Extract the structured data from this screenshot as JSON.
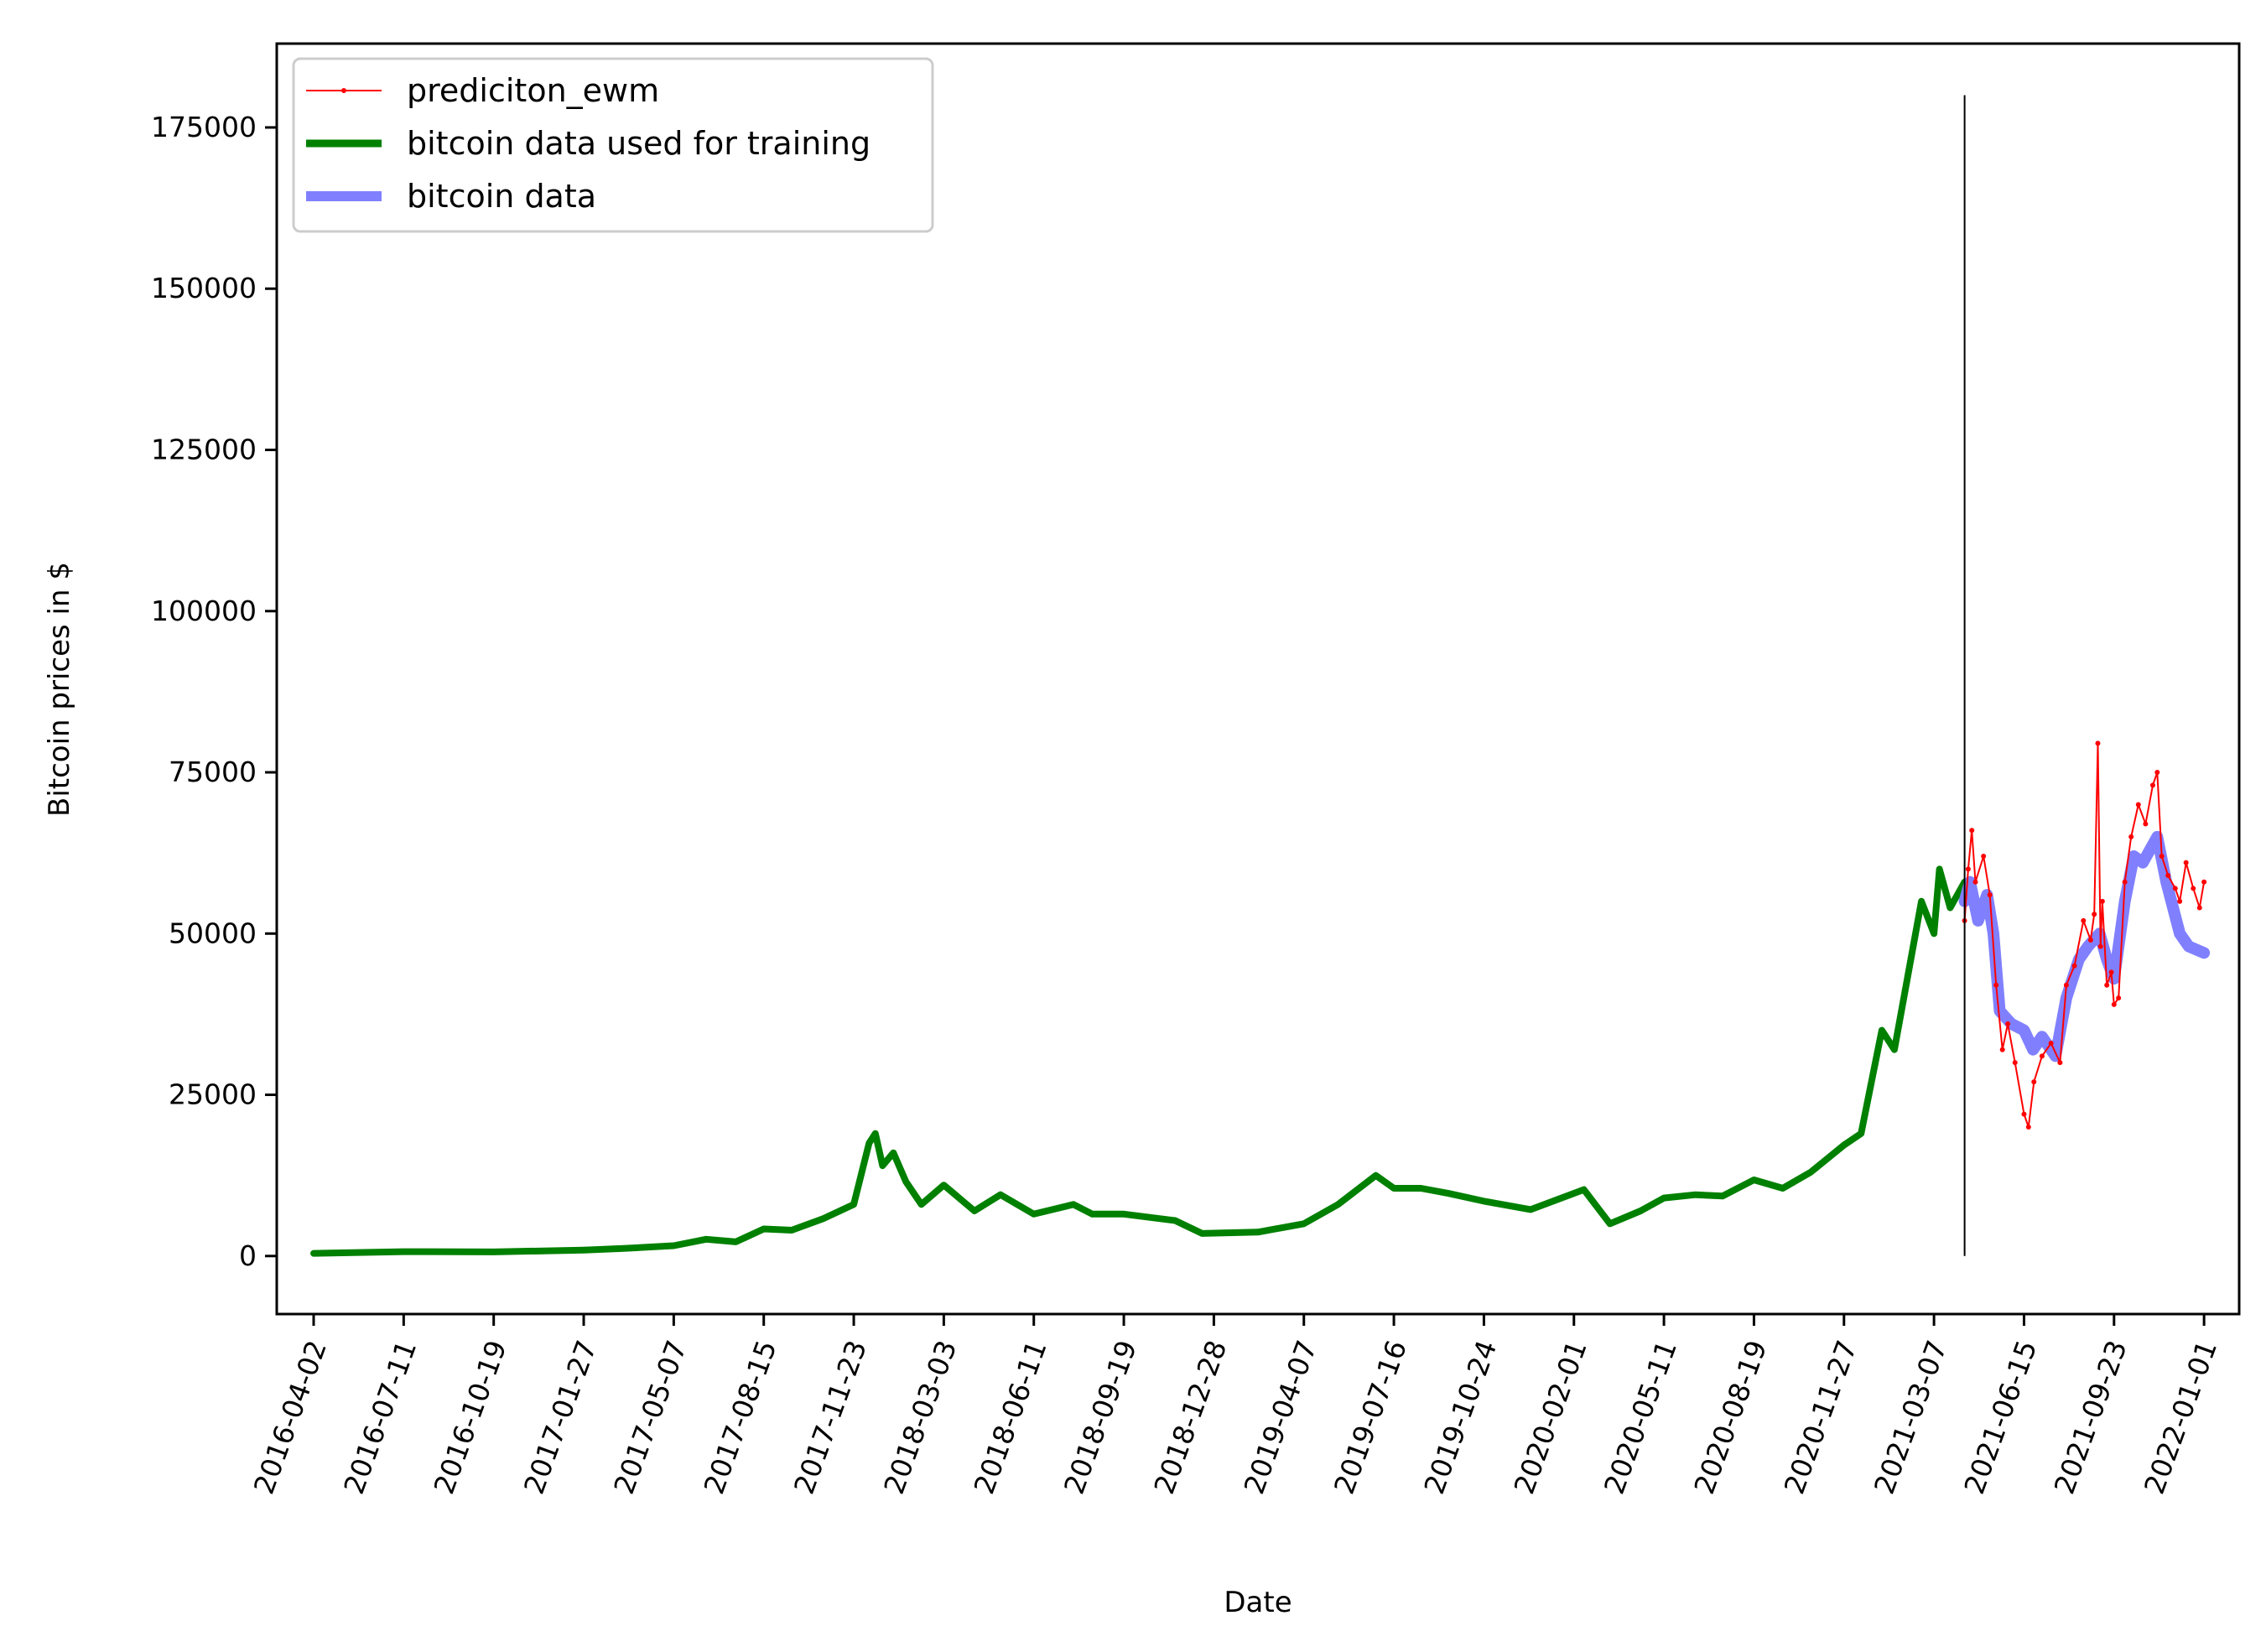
{
  "chart_data": {
    "type": "line",
    "title": "",
    "xlabel": "Date",
    "ylabel": "Bitcoin prices in $",
    "xlim": [
      "2016-02-21",
      "2022-02-09"
    ],
    "ylim": [
      -9000,
      188000
    ],
    "grid": false,
    "legend_position": "top-left",
    "x_ticks": [
      "2016-04-02",
      "2016-07-11",
      "2016-10-19",
      "2017-01-27",
      "2017-05-07",
      "2017-08-15",
      "2017-11-23",
      "2018-03-03",
      "2018-06-11",
      "2018-09-19",
      "2018-12-28",
      "2019-04-07",
      "2019-07-16",
      "2019-10-24",
      "2020-02-01",
      "2020-05-11",
      "2020-08-19",
      "2020-11-27",
      "2021-03-07",
      "2021-06-15",
      "2021-09-23",
      "2022-01-01"
    ],
    "y_ticks": [
      "0",
      "25000",
      "50000",
      "75000",
      "100000",
      "125000",
      "150000",
      "175000"
    ],
    "y_tick_values": [
      0,
      25000,
      50000,
      75000,
      100000,
      125000,
      150000,
      175000
    ],
    "split_line": {
      "x": "2021-04-10",
      "y_from": 0,
      "y_to": 180000,
      "color": "#000000"
    },
    "series": [
      {
        "name": "bitcoin data used for training",
        "color": "#008000",
        "x": [
          "2016-04-02",
          "2016-07-11",
          "2016-10-19",
          "2017-01-27",
          "2017-03-15",
          "2017-05-07",
          "2017-06-12",
          "2017-07-15",
          "2017-08-15",
          "2017-09-15",
          "2017-10-20",
          "2017-11-23",
          "2017-12-10",
          "2017-12-17",
          "2017-12-25",
          "2018-01-06",
          "2018-01-20",
          "2018-02-06",
          "2018-03-03",
          "2018-04-06",
          "2018-05-05",
          "2018-06-11",
          "2018-07-25",
          "2018-08-15",
          "2018-09-19",
          "2018-11-15",
          "2018-12-15",
          "2019-02-15",
          "2019-04-07",
          "2019-05-15",
          "2019-06-26",
          "2019-07-16",
          "2019-08-15",
          "2019-09-15",
          "2019-10-24",
          "2019-12-15",
          "2020-02-12",
          "2020-03-12",
          "2020-04-15",
          "2020-05-11",
          "2020-06-15",
          "2020-07-15",
          "2020-08-19",
          "2020-09-20",
          "2020-10-21",
          "2020-11-27",
          "2020-12-16",
          "2021-01-08",
          "2021-01-22",
          "2021-02-08",
          "2021-02-21",
          "2021-03-07",
          "2021-03-13",
          "2021-03-25",
          "2021-04-10"
        ],
        "y": [
          420,
          670,
          640,
          920,
          1200,
          1600,
          2600,
          2200,
          4200,
          4000,
          5800,
          8000,
          17500,
          19000,
          14000,
          16000,
          11500,
          8000,
          11000,
          7000,
          9500,
          6500,
          8000,
          6500,
          6500,
          5500,
          3500,
          3700,
          5000,
          8000,
          12500,
          10500,
          10500,
          9700,
          8500,
          7200,
          10300,
          5000,
          7000,
          9000,
          9500,
          9300,
          11800,
          10500,
          13000,
          17200,
          19000,
          35000,
          32000,
          45000,
          55000,
          50000,
          60000,
          54000,
          58000
        ]
      },
      {
        "name": "bitcoin data",
        "color": "#8080ff",
        "x": [
          "2021-04-10",
          "2021-04-16",
          "2021-04-25",
          "2021-05-05",
          "2021-05-12",
          "2021-05-19",
          "2021-06-01",
          "2021-06-15",
          "2021-06-25",
          "2021-07-05",
          "2021-07-20",
          "2021-08-01",
          "2021-08-15",
          "2021-08-25",
          "2021-09-07",
          "2021-09-15",
          "2021-09-23",
          "2021-10-05",
          "2021-10-15",
          "2021-10-25",
          "2021-11-10",
          "2021-11-20",
          "2021-12-05",
          "2021-12-15",
          "2022-01-01"
        ],
        "y": [
          55000,
          58000,
          52000,
          56000,
          50000,
          38000,
          36000,
          35000,
          32000,
          34000,
          31000,
          40000,
          46000,
          48000,
          50000,
          46000,
          43000,
          55000,
          62000,
          61000,
          65000,
          58000,
          50000,
          48000,
          47000
        ]
      },
      {
        "name": "prediciton_ewm",
        "color": "#ff0000",
        "x": [
          "2021-04-10",
          "2021-04-14",
          "2021-04-18",
          "2021-04-22",
          "2021-05-01",
          "2021-05-08",
          "2021-05-15",
          "2021-05-22",
          "2021-05-28",
          "2021-06-05",
          "2021-06-15",
          "2021-06-20",
          "2021-06-26",
          "2021-07-05",
          "2021-07-15",
          "2021-07-25",
          "2021-08-01",
          "2021-08-10",
          "2021-08-20",
          "2021-08-28",
          "2021-09-01",
          "2021-09-05",
          "2021-09-08",
          "2021-09-10",
          "2021-09-15",
          "2021-09-20",
          "2021-09-23",
          "2021-09-28",
          "2021-10-05",
          "2021-10-12",
          "2021-10-20",
          "2021-10-28",
          "2021-11-05",
          "2021-11-10",
          "2021-11-15",
          "2021-11-22",
          "2021-11-30",
          "2021-12-05",
          "2021-12-12",
          "2021-12-20",
          "2021-12-27",
          "2022-01-01"
        ],
        "y": [
          52000,
          60000,
          66000,
          58000,
          62000,
          56000,
          42000,
          32000,
          36000,
          30000,
          22000,
          20000,
          27000,
          31000,
          33000,
          30000,
          42000,
          45000,
          52000,
          49000,
          53000,
          79500,
          48000,
          55000,
          42000,
          44000,
          39000,
          40000,
          58000,
          65000,
          70000,
          67000,
          73000,
          75000,
          62000,
          59000,
          57000,
          55000,
          61000,
          57000,
          54000,
          58000
        ]
      }
    ]
  }
}
